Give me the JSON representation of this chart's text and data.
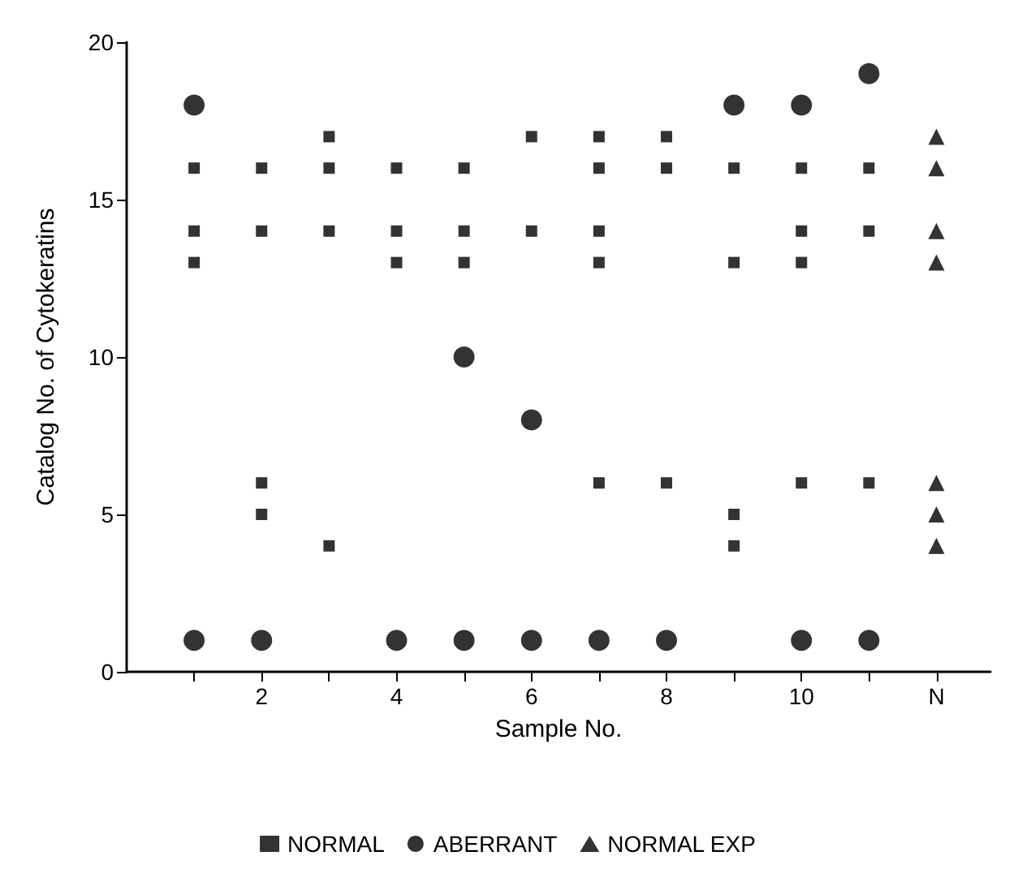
{
  "chart_data": {
    "type": "scatter",
    "xlabel": "Sample No.",
    "ylabel": "Catalog No. of Cytokeratins",
    "xlim": [
      0,
      12.8
    ],
    "ylim": [
      0,
      20
    ],
    "xticks": [
      {
        "value": 1,
        "label": null
      },
      2,
      {
        "value": 3,
        "label": null
      },
      4,
      {
        "value": 5,
        "label": null
      },
      6,
      {
        "value": 7,
        "label": null
      },
      8,
      {
        "value": 9,
        "label": null
      },
      10,
      {
        "value": 11,
        "label": null
      },
      {
        "value": 12,
        "label": "N"
      }
    ],
    "yticks": [
      0,
      5,
      10,
      15,
      20
    ],
    "grid": false,
    "legend": "bottom",
    "series": [
      {
        "name": "NORMAL",
        "color": "#000000",
        "marker": "square",
        "x": [
          1,
          1,
          1,
          2,
          2,
          2,
          2,
          3,
          3,
          3,
          3,
          4,
          4,
          4,
          5,
          5,
          5,
          6,
          6,
          7,
          7,
          7,
          7,
          7,
          8,
          8,
          8,
          9,
          9,
          9,
          9,
          10,
          10,
          10,
          10,
          11,
          11,
          11
        ],
        "values": [
          16,
          14,
          13,
          16,
          14,
          6,
          5,
          17,
          16,
          14,
          4,
          16,
          14,
          13,
          16,
          14,
          13,
          17,
          14,
          17,
          16,
          14,
          13,
          6,
          17,
          16,
          6,
          16,
          13,
          5,
          4,
          16,
          14,
          13,
          6,
          16,
          14,
          6
        ]
      },
      {
        "name": "ABERRANT",
        "color": "#000000",
        "marker": "circle",
        "x": [
          1,
          1,
          2,
          4,
          5,
          5,
          6,
          6,
          7,
          8,
          9,
          10,
          10,
          11,
          11
        ],
        "values": [
          18,
          1,
          1,
          1,
          10,
          1,
          8,
          1,
          1,
          1,
          18,
          18,
          1,
          19,
          1
        ]
      },
      {
        "name": "NORMAL EXP",
        "color": "#000000",
        "marker": "triangle",
        "x": [
          12,
          12,
          12,
          12,
          12,
          12,
          12
        ],
        "values": [
          17,
          16,
          14,
          13,
          6,
          5,
          4
        ]
      }
    ]
  }
}
